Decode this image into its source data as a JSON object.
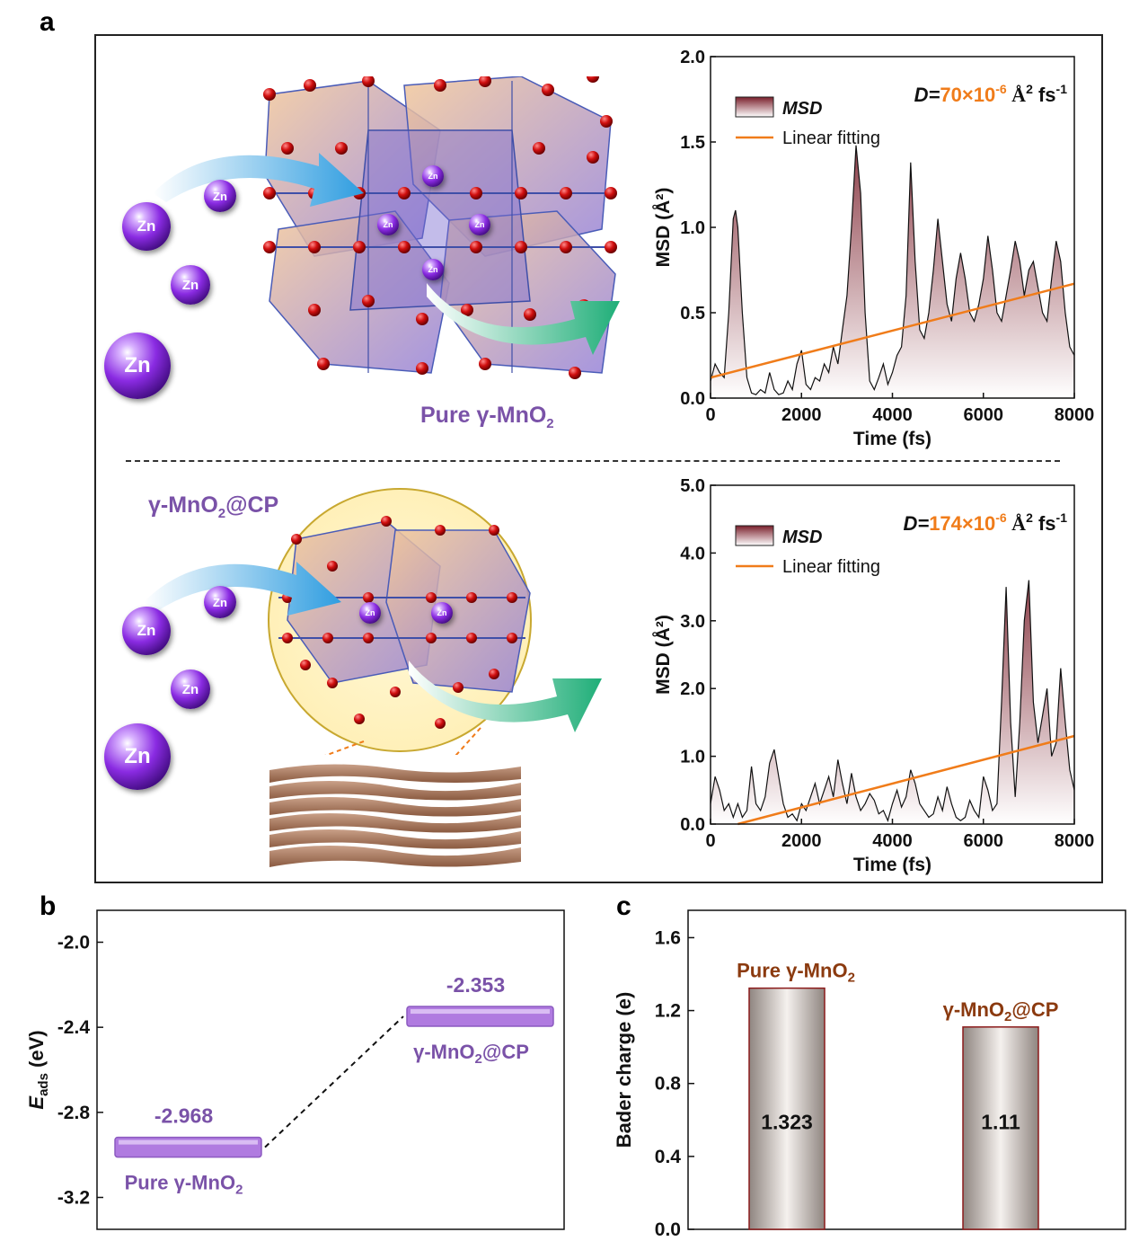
{
  "panels": {
    "a": "a",
    "b": "b",
    "c": "c"
  },
  "illustration": {
    "top_label": "Pure γ-MnO",
    "top_label_sub": "2",
    "bottom_label_pre": "γ-MnO",
    "bottom_label_sub": "2",
    "bottom_label_post": "@CP",
    "zn": "Zn"
  },
  "chart_data": [
    {
      "id": "msd_pure",
      "type": "area",
      "xlabel": "Time (fs)",
      "ylabel": "MSD (Å²)",
      "xlim": [
        0,
        8000
      ],
      "ylim": [
        0,
        2.0
      ],
      "xticks": [
        "0",
        "2000",
        "4000",
        "6000",
        "8000"
      ],
      "yticks": [
        "0.0",
        "0.5",
        "1.0",
        "1.5",
        "2.0"
      ],
      "legend": [
        "MSD",
        "Linear fitting"
      ],
      "annotation": {
        "prefix": "D=",
        "value": "70×10",
        "exp": "-6",
        "unit": " Å",
        "unit_exp": "2",
        "tail": " fs",
        "tail_exp": "-1"
      },
      "msd_x": [
        0,
        100,
        200,
        300,
        400,
        500,
        550,
        600,
        700,
        800,
        900,
        1000,
        1100,
        1200,
        1300,
        1400,
        1500,
        1600,
        1700,
        1800,
        1900,
        2000,
        2100,
        2200,
        2300,
        2400,
        2500,
        2600,
        2700,
        2800,
        2900,
        3000,
        3100,
        3200,
        3300,
        3400,
        3500,
        3600,
        3700,
        3800,
        3900,
        4000,
        4100,
        4200,
        4300,
        4400,
        4500,
        4600,
        4700,
        4800,
        4900,
        5000,
        5100,
        5200,
        5300,
        5400,
        5500,
        5600,
        5700,
        5800,
        5900,
        6000,
        6100,
        6200,
        6300,
        6400,
        6500,
        6600,
        6700,
        6800,
        6900,
        7000,
        7100,
        7200,
        7300,
        7400,
        7500,
        7600,
        7700,
        7800,
        7900,
        8000
      ],
      "msd_y": [
        0.1,
        0.2,
        0.15,
        0.12,
        0.5,
        1.05,
        1.1,
        1.0,
        0.5,
        0.12,
        0.03,
        0.02,
        0.05,
        0.03,
        0.15,
        0.05,
        0.02,
        0.03,
        0.1,
        0.05,
        0.2,
        0.28,
        0.08,
        0.05,
        0.12,
        0.1,
        0.2,
        0.15,
        0.3,
        0.2,
        0.4,
        0.6,
        1.0,
        1.48,
        1.2,
        0.5,
        0.1,
        0.05,
        0.12,
        0.2,
        0.08,
        0.15,
        0.25,
        0.3,
        0.6,
        1.38,
        0.8,
        0.4,
        0.35,
        0.5,
        0.75,
        1.05,
        0.8,
        0.55,
        0.45,
        0.7,
        0.85,
        0.7,
        0.5,
        0.45,
        0.55,
        0.7,
        0.95,
        0.75,
        0.5,
        0.45,
        0.6,
        0.75,
        0.92,
        0.8,
        0.6,
        0.75,
        0.8,
        0.65,
        0.5,
        0.45,
        0.7,
        0.92,
        0.8,
        0.5,
        0.3,
        0.25
      ],
      "fit": {
        "x": [
          0,
          8000
        ],
        "y": [
          0.12,
          0.67
        ]
      },
      "colors": {
        "msd": "#7a1f2b",
        "fit": "#f07c1a",
        "annotation": "#f07c1a"
      }
    },
    {
      "id": "msd_cp",
      "type": "area",
      "xlabel": "Time (fs)",
      "ylabel": "MSD (Å²)",
      "xlim": [
        0,
        8000
      ],
      "ylim": [
        0,
        5.0
      ],
      "xticks": [
        "0",
        "2000",
        "4000",
        "6000",
        "8000"
      ],
      "yticks": [
        "0.0",
        "1.0",
        "2.0",
        "3.0",
        "4.0",
        "5.0"
      ],
      "legend": [
        "MSD",
        "Linear fitting"
      ],
      "annotation": {
        "prefix": "D=",
        "value": "174×10",
        "exp": "-6",
        "unit": " Å",
        "unit_exp": "2",
        "tail": " fs",
        "tail_exp": "-1"
      },
      "msd_x": [
        0,
        100,
        200,
        300,
        400,
        500,
        600,
        700,
        800,
        900,
        1000,
        1100,
        1200,
        1300,
        1400,
        1500,
        1600,
        1700,
        1800,
        1900,
        2000,
        2100,
        2200,
        2300,
        2400,
        2500,
        2600,
        2700,
        2800,
        2900,
        3000,
        3100,
        3200,
        3300,
        3400,
        3500,
        3600,
        3700,
        3800,
        3900,
        4000,
        4100,
        4200,
        4300,
        4400,
        4500,
        4600,
        4700,
        4800,
        4900,
        5000,
        5100,
        5200,
        5300,
        5400,
        5500,
        5600,
        5700,
        5800,
        5900,
        6000,
        6100,
        6200,
        6300,
        6400,
        6500,
        6600,
        6700,
        6800,
        6900,
        7000,
        7100,
        7200,
        7300,
        7400,
        7500,
        7600,
        7700,
        7800,
        7900,
        8000
      ],
      "msd_y": [
        0.3,
        0.7,
        0.5,
        0.2,
        0.3,
        0.1,
        0.3,
        0.1,
        0.2,
        0.85,
        0.3,
        0.2,
        0.4,
        0.9,
        1.1,
        0.7,
        0.3,
        0.1,
        0.15,
        0.05,
        0.3,
        0.2,
        0.4,
        0.6,
        0.3,
        0.5,
        0.7,
        0.4,
        0.95,
        0.6,
        0.3,
        0.75,
        0.4,
        0.2,
        0.3,
        0.45,
        0.35,
        0.15,
        0.2,
        0.05,
        0.3,
        0.5,
        0.25,
        0.4,
        0.8,
        0.6,
        0.3,
        0.2,
        0.1,
        0.15,
        0.4,
        0.2,
        0.55,
        0.3,
        0.1,
        0.05,
        0.1,
        0.35,
        0.2,
        0.1,
        0.7,
        0.5,
        0.2,
        0.3,
        1.8,
        3.5,
        1.5,
        0.4,
        1.5,
        3.0,
        3.6,
        1.8,
        1.2,
        1.6,
        2.0,
        1.0,
        1.2,
        2.3,
        1.5,
        0.8,
        0.5
      ],
      "fit": {
        "x": [
          600,
          8000
        ],
        "y": [
          0.0,
          1.3
        ]
      },
      "colors": {
        "msd": "#7a1f2b",
        "fit": "#f07c1a",
        "annotation": "#f07c1a"
      }
    },
    {
      "id": "eads",
      "type": "bar",
      "ylabel_main": "E",
      "ylabel_sub": "ads",
      "ylabel_unit": " (eV)",
      "ylim": [
        -3.35,
        -1.85
      ],
      "yticks": [
        "-2.0",
        "-2.4",
        "-2.8",
        "-3.2"
      ],
      "categories": [
        {
          "pre": "Pure γ-MnO",
          "sub": "2",
          "post": ""
        },
        {
          "pre": "γ-MnO",
          "sub": "2",
          "post": "@CP"
        }
      ],
      "values": [
        -2.968,
        -2.353
      ],
      "value_labels": [
        "-2.968",
        "-2.353"
      ],
      "colors": {
        "bar": "#b07be0",
        "text": "#7a52a8"
      }
    },
    {
      "id": "bader",
      "type": "bar",
      "ylabel": "Bader charge (e)",
      "ylim": [
        0,
        1.75
      ],
      "yticks": [
        "0.0",
        "0.4",
        "0.8",
        "1.2",
        "1.6"
      ],
      "categories": [
        {
          "pre": "Pure γ-MnO",
          "sub": "2",
          "post": ""
        },
        {
          "pre": "γ-MnO",
          "sub": "2",
          "post": "@CP"
        }
      ],
      "values": [
        1.323,
        1.11
      ],
      "value_labels": [
        "1.323",
        "1.11"
      ],
      "colors": {
        "bar": "#a89f9a",
        "edge": "#8b1a1a",
        "text": "#8b3a0f"
      }
    }
  ]
}
